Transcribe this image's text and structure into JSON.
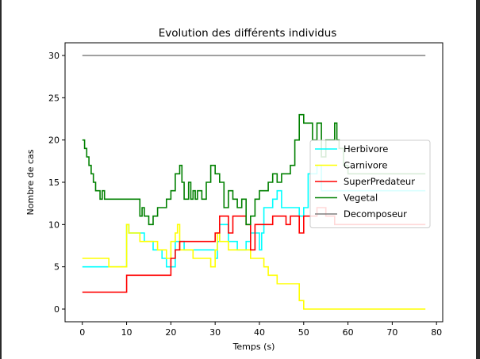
{
  "chart_data": {
    "type": "line",
    "title": "Evolution des différents individus",
    "xlabel": "Temps (s)",
    "ylabel": "Nombre de cas",
    "xlim": [
      -3.9,
      81.4
    ],
    "ylim": [
      -1.5,
      31.5
    ],
    "xticks": [
      0,
      10,
      20,
      30,
      40,
      50,
      60,
      70,
      80
    ],
    "yticks": [
      0,
      5,
      10,
      15,
      20,
      25,
      30
    ],
    "grid": false,
    "legend_position": "center-right",
    "series": [
      {
        "name": "Herbivore",
        "color": "#00ffff",
        "step": true,
        "x": [
          0,
          10,
          10.5,
          13,
          14,
          15,
          16,
          18,
          19,
          20,
          21,
          22,
          23,
          26,
          30,
          30.5,
          31,
          33,
          34,
          35,
          37,
          38,
          40,
          40.5,
          41,
          42,
          43,
          44,
          45,
          47,
          48,
          49,
          50,
          51,
          52,
          53,
          54,
          77.5
        ],
        "y": [
          5,
          10,
          9,
          9,
          8,
          8,
          7,
          6,
          5,
          5,
          8,
          8,
          7,
          7,
          6,
          8,
          10,
          8,
          8,
          7,
          8,
          9,
          7,
          9,
          12,
          12,
          13,
          14,
          12,
          12,
          12,
          11,
          12,
          16,
          16,
          17,
          14,
          14
        ]
      },
      {
        "name": "Carnivore",
        "color": "#ffff00",
        "step": true,
        "x": [
          0,
          6,
          10,
          10.5,
          12,
          13,
          17,
          18,
          19,
          20,
          21,
          21.5,
          22,
          25,
          29,
          30,
          30.5,
          31,
          33,
          37,
          38,
          39,
          40,
          41,
          42,
          43,
          44,
          47,
          49,
          50,
          77.5
        ],
        "y": [
          6,
          5,
          10,
          9,
          9,
          8,
          7,
          7,
          6,
          8,
          9,
          10,
          7,
          6,
          5,
          7,
          9,
          8,
          7,
          7,
          6,
          6,
          6,
          5,
          4,
          4,
          3,
          3,
          1,
          0,
          0
        ]
      },
      {
        "name": "SuperPredateur",
        "color": "#ff0000",
        "step": true,
        "x": [
          0,
          10,
          20,
          21,
          22,
          30,
          31,
          33,
          34,
          35,
          37,
          38,
          39,
          40,
          41,
          43,
          44,
          46,
          47,
          48,
          49,
          50,
          52,
          53,
          55,
          57,
          77.5
        ],
        "y": [
          2,
          4,
          6,
          7,
          8,
          9,
          11,
          9,
          11,
          11,
          10,
          7,
          10,
          10,
          10,
          11,
          11,
          10,
          11,
          11,
          9,
          11,
          11,
          12,
          11,
          10,
          10
        ]
      },
      {
        "name": "Vegetal",
        "color": "#008000",
        "step": true,
        "x": [
          0,
          0.5,
          1,
          1.5,
          2,
          2.5,
          3,
          4,
          4.5,
          5,
          6,
          13,
          13.5,
          14,
          15,
          16,
          17,
          19,
          20,
          21,
          22,
          22.5,
          23,
          24,
          24.5,
          25,
          25.5,
          26,
          27,
          28,
          29,
          30,
          31,
          32,
          33,
          34,
          35,
          36,
          37,
          38,
          39,
          40,
          41,
          42,
          43,
          44,
          45,
          46,
          47,
          48,
          49,
          50,
          51,
          52,
          53,
          54,
          55,
          56,
          57,
          57.5,
          58,
          59,
          60,
          61,
          77.5
        ],
        "y": [
          20,
          19,
          18,
          17,
          16,
          15,
          14,
          13,
          14,
          13,
          13,
          11,
          12,
          11,
          10,
          11,
          12,
          13,
          14,
          16,
          17,
          15,
          13,
          15,
          13,
          14,
          13,
          14,
          13,
          15,
          17,
          16,
          15,
          12,
          14,
          13,
          12,
          13,
          10,
          11,
          13,
          14,
          14,
          15,
          16,
          15,
          16,
          16,
          17,
          20,
          23,
          22,
          22,
          20,
          22,
          18,
          20,
          20,
          22,
          20,
          19,
          17,
          16,
          16,
          16
        ]
      },
      {
        "name": "Decomposeur",
        "color": "#808080",
        "step": false,
        "x": [
          0,
          77.5
        ],
        "y": [
          30,
          30
        ]
      }
    ]
  }
}
